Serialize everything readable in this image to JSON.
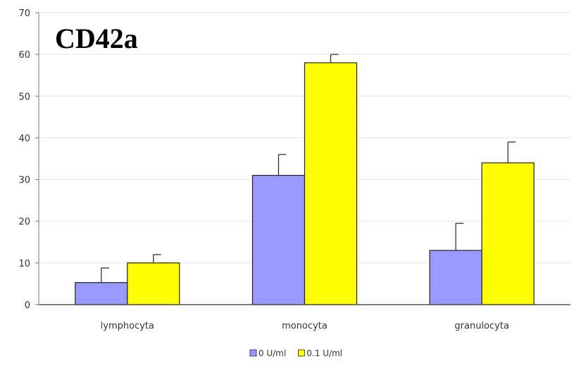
{
  "chart_data": {
    "type": "bar",
    "title": "CD42a",
    "xlabel": "",
    "ylabel": "",
    "ylim": [
      0,
      70
    ],
    "yticks": [
      0,
      10,
      20,
      30,
      40,
      50,
      60,
      70
    ],
    "grid": true,
    "legend_position": "bottom",
    "categories": [
      "lymphocyta",
      "monocyta",
      "granulocyta"
    ],
    "series": [
      {
        "name": "0 U/ml",
        "color": "#9999ff",
        "values": [
          5.3,
          31,
          13
        ],
        "errors": [
          3.5,
          5,
          6.5
        ]
      },
      {
        "name": "0.1 U/ml",
        "color": "#ffff00",
        "values": [
          10,
          58,
          34
        ],
        "errors": [
          2,
          2,
          5
        ]
      }
    ]
  }
}
